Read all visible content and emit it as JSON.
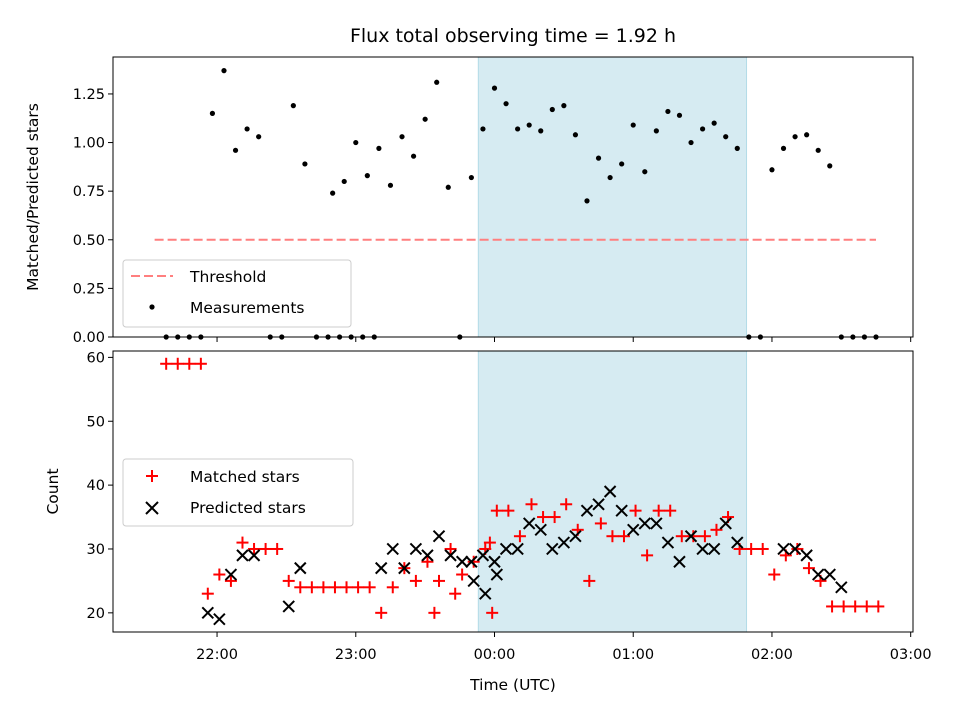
{
  "chart_data": [
    {
      "type": "scatter",
      "title": "Flux total observing time = 1.92 h",
      "ylabel": "Matched/Predicted stars",
      "xlabel": "",
      "ylim": [
        0,
        1.44
      ],
      "yticks": [
        "0.00",
        "0.25",
        "0.50",
        "0.75",
        "1.00",
        "1.25"
      ],
      "highlight_span": {
        "start": "23:53",
        "end": "01:49"
      },
      "legend": {
        "placement": "lower-left",
        "entries": [
          "Threshold",
          "Measurements"
        ]
      },
      "threshold": {
        "name": "Threshold",
        "value": 0.5,
        "x_start": "21:33",
        "x_end": "02:45",
        "color": "#ff7f7f"
      },
      "series": [
        {
          "name": "Measurements",
          "color": "#000000",
          "points": [
            [
              "21:38",
              0
            ],
            [
              "21:43",
              0
            ],
            [
              "21:48",
              0
            ],
            [
              "21:53",
              0
            ],
            [
              "21:58",
              1.15
            ],
            [
              "22:03",
              1.37
            ],
            [
              "22:08",
              0.96
            ],
            [
              "22:13",
              1.07
            ],
            [
              "22:18",
              1.03
            ],
            [
              "22:23",
              0
            ],
            [
              "22:28",
              0
            ],
            [
              "22:33",
              1.19
            ],
            [
              "22:38",
              0.89
            ],
            [
              "22:43",
              0
            ],
            [
              "22:48",
              0
            ],
            [
              "22:53",
              0
            ],
            [
              "22:58",
              0
            ],
            [
              "23:03",
              0
            ],
            [
              "23:08",
              0
            ],
            [
              "22:50",
              0.74
            ],
            [
              "22:55",
              0.8
            ],
            [
              "23:00",
              1.0
            ],
            [
              "23:05",
              0.83
            ],
            [
              "23:10",
              0.97
            ],
            [
              "23:15",
              0.78
            ],
            [
              "23:20",
              1.03
            ],
            [
              "23:25",
              0.93
            ],
            [
              "23:30",
              1.12
            ],
            [
              "23:35",
              1.31
            ],
            [
              "23:40",
              0.77
            ],
            [
              "23:45",
              0
            ],
            [
              "23:50",
              0.82
            ],
            [
              "23:55",
              1.07
            ],
            [
              "00:00",
              1.28
            ],
            [
              "00:05",
              1.2
            ],
            [
              "00:10",
              1.07
            ],
            [
              "00:15",
              1.09
            ],
            [
              "00:20",
              1.06
            ],
            [
              "00:25",
              1.17
            ],
            [
              "00:30",
              1.19
            ],
            [
              "00:35",
              1.04
            ],
            [
              "00:40",
              0.7
            ],
            [
              "00:45",
              0.92
            ],
            [
              "00:50",
              0.82
            ],
            [
              "00:55",
              0.89
            ],
            [
              "01:00",
              1.09
            ],
            [
              "01:05",
              0.85
            ],
            [
              "01:10",
              1.06
            ],
            [
              "01:15",
              1.16
            ],
            [
              "01:20",
              1.14
            ],
            [
              "01:25",
              1.0
            ],
            [
              "01:30",
              1.07
            ],
            [
              "01:35",
              1.1
            ],
            [
              "01:40",
              1.03
            ],
            [
              "01:45",
              0.97
            ],
            [
              "01:50",
              0
            ],
            [
              "01:55",
              0
            ],
            [
              "02:00",
              0.86
            ],
            [
              "02:05",
              0.97
            ],
            [
              "02:10",
              1.03
            ],
            [
              "02:15",
              1.04
            ],
            [
              "02:20",
              0.96
            ],
            [
              "02:25",
              0.88
            ],
            [
              "02:30",
              0
            ],
            [
              "02:35",
              0
            ],
            [
              "02:40",
              0
            ],
            [
              "02:45",
              0
            ]
          ]
        }
      ]
    },
    {
      "type": "scatter",
      "title": "",
      "xlabel": "Time (UTC)",
      "ylabel": "Count",
      "ylim": [
        17,
        61
      ],
      "yticks": [
        "20",
        "30",
        "40",
        "50",
        "60"
      ],
      "xticks": [
        "22:00",
        "23:00",
        "00:00",
        "01:00",
        "02:00",
        "03:00"
      ],
      "highlight_span": {
        "start": "23:53",
        "end": "01:49"
      },
      "legend": {
        "placement": "center-left",
        "entries": [
          "Matched stars",
          "Predicted stars"
        ]
      },
      "series": [
        {
          "name": "Matched stars",
          "marker": "plus",
          "color": "#ff0000",
          "points": [
            [
              "21:38",
              59
            ],
            [
              "21:43",
              59
            ],
            [
              "21:48",
              59
            ],
            [
              "21:53",
              59
            ],
            [
              "21:56",
              23
            ],
            [
              "22:01",
              26
            ],
            [
              "22:06",
              25
            ],
            [
              "22:11",
              31
            ],
            [
              "22:16",
              30
            ],
            [
              "22:21",
              30
            ],
            [
              "22:26",
              30
            ],
            [
              "22:31",
              25
            ],
            [
              "22:36",
              24
            ],
            [
              "22:41",
              24
            ],
            [
              "22:46",
              24
            ],
            [
              "22:51",
              24
            ],
            [
              "22:56",
              24
            ],
            [
              "23:01",
              24
            ],
            [
              "23:06",
              24
            ],
            [
              "23:11",
              20
            ],
            [
              "23:16",
              24
            ],
            [
              "23:21",
              27
            ],
            [
              "23:26",
              25
            ],
            [
              "23:31",
              28
            ],
            [
              "23:36",
              25
            ],
            [
              "23:41",
              30
            ],
            [
              "23:46",
              26
            ],
            [
              "23:51",
              28
            ],
            [
              "23:56",
              30
            ],
            [
              "23:59",
              20
            ],
            [
              "23:34",
              20
            ],
            [
              "23:43",
              23
            ],
            [
              "23:58",
              31
            ],
            [
              "00:01",
              36
            ],
            [
              "00:06",
              36
            ],
            [
              "00:11",
              32
            ],
            [
              "00:16",
              37
            ],
            [
              "00:21",
              35
            ],
            [
              "00:26",
              35
            ],
            [
              "00:31",
              37
            ],
            [
              "00:36",
              33
            ],
            [
              "00:41",
              25
            ],
            [
              "00:46",
              34
            ],
            [
              "00:51",
              32
            ],
            [
              "00:56",
              32
            ],
            [
              "01:01",
              36
            ],
            [
              "01:06",
              29
            ],
            [
              "01:11",
              36
            ],
            [
              "01:16",
              36
            ],
            [
              "01:21",
              32
            ],
            [
              "01:26",
              32
            ],
            [
              "01:31",
              32
            ],
            [
              "01:36",
              33
            ],
            [
              "01:41",
              35
            ],
            [
              "01:46",
              30
            ],
            [
              "01:51",
              30
            ],
            [
              "01:56",
              30
            ],
            [
              "02:01",
              26
            ],
            [
              "02:06",
              29
            ],
            [
              "02:11",
              30
            ],
            [
              "02:16",
              27
            ],
            [
              "02:21",
              25
            ],
            [
              "02:26",
              21
            ],
            [
              "02:31",
              21
            ],
            [
              "02:36",
              21
            ],
            [
              "02:41",
              21
            ],
            [
              "02:46",
              21
            ]
          ]
        },
        {
          "name": "Predicted stars",
          "marker": "x",
          "color": "#000000",
          "points": [
            [
              "21:56",
              20
            ],
            [
              "22:01",
              19
            ],
            [
              "22:06",
              26
            ],
            [
              "22:11",
              29
            ],
            [
              "22:16",
              29
            ],
            [
              "22:31",
              21
            ],
            [
              "22:36",
              27
            ],
            [
              "23:11",
              27
            ],
            [
              "23:16",
              30
            ],
            [
              "23:21",
              27
            ],
            [
              "23:26",
              30
            ],
            [
              "23:31",
              29
            ],
            [
              "23:36",
              32
            ],
            [
              "23:41",
              29
            ],
            [
              "23:46",
              28
            ],
            [
              "23:51",
              25
            ],
            [
              "23:56",
              23
            ],
            [
              "00:01",
              26
            ],
            [
              "23:50",
              28
            ],
            [
              "23:55",
              29
            ],
            [
              "00:00",
              28
            ],
            [
              "00:05",
              30
            ],
            [
              "00:10",
              30
            ],
            [
              "00:15",
              34
            ],
            [
              "00:20",
              33
            ],
            [
              "00:25",
              30
            ],
            [
              "00:30",
              31
            ],
            [
              "00:35",
              32
            ],
            [
              "00:40",
              36
            ],
            [
              "00:45",
              37
            ],
            [
              "00:50",
              39
            ],
            [
              "00:55",
              36
            ],
            [
              "01:00",
              33
            ],
            [
              "01:05",
              34
            ],
            [
              "01:10",
              34
            ],
            [
              "01:15",
              31
            ],
            [
              "01:20",
              28
            ],
            [
              "01:25",
              32
            ],
            [
              "01:30",
              30
            ],
            [
              "01:35",
              30
            ],
            [
              "01:40",
              34
            ],
            [
              "01:45",
              31
            ],
            [
              "02:05",
              30
            ],
            [
              "02:10",
              30
            ],
            [
              "02:15",
              29
            ],
            [
              "02:20",
              26
            ],
            [
              "02:25",
              26
            ],
            [
              "02:30",
              24
            ]
          ]
        }
      ]
    }
  ]
}
